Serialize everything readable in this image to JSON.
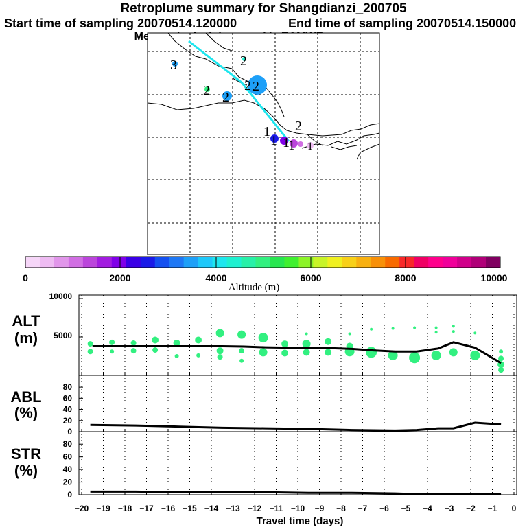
{
  "title": "Retroplume summary for Shangdianzi_200705",
  "start_label": "Start time of sampling 20070514.120000",
  "end_label": "End time of sampling 20070514.150000",
  "met_label": "Meteorological data used is ECMWF",
  "colorbar": {
    "label": "Altitude (m)",
    "ticks": [
      "0",
      "2000",
      "4000",
      "6000",
      "8000",
      "10000"
    ],
    "colors": [
      "#f6d6f8",
      "#eebbf2",
      "#e196ea",
      "#d16ee3",
      "#bb45db",
      "#a21ce0",
      "#8000e8",
      "#3a00e6",
      "#1a1ae8",
      "#1450f0",
      "#1e78f5",
      "#1ea0f8",
      "#1ec8fa",
      "#1ee6ee",
      "#1ef0d0",
      "#28f0a8",
      "#32f080",
      "#28e650",
      "#40f030",
      "#8cf428",
      "#c8f428",
      "#f0f020",
      "#f8d018",
      "#f8b010",
      "#f89008",
      "#f86a00",
      "#f82828",
      "#f00064",
      "#ff008c",
      "#f0009a",
      "#d0008a",
      "#b00078",
      "#800060"
    ]
  },
  "map": {
    "labels": [
      "3",
      "2",
      "2",
      "2",
      "2",
      "1",
      "1",
      "1",
      "2",
      "1",
      "1",
      "1"
    ]
  },
  "chart_data": [
    {
      "type": "line",
      "title": "",
      "ylabel": "ALT (m)",
      "ylabel_lines": [
        "ALT",
        "(m)"
      ],
      "ylim": [
        0,
        10000
      ],
      "yticks": [
        "10000",
        "5000"
      ],
      "x": [
        -19.5,
        -18.5,
        -17.5,
        -16.5,
        -15.5,
        -14.5,
        -13.5,
        -12.5,
        -11.5,
        -10.5,
        -9.5,
        -8.5,
        -7.5,
        -6.5,
        -5.5,
        -4.5,
        -3.5,
        -2.8,
        -1.8,
        -0.6
      ],
      "values": [
        3800,
        3800,
        3800,
        3800,
        3800,
        3800,
        3800,
        3750,
        3650,
        3600,
        3600,
        3550,
        3450,
        3250,
        3100,
        3100,
        3500,
        4300,
        3600,
        1600
      ],
      "scatter_color": "#32f080",
      "scatter": [
        {
          "x": -19.6,
          "y": 4100,
          "r": 4
        },
        {
          "x": -19.6,
          "y": 3100,
          "r": 4
        },
        {
          "x": -18.6,
          "y": 4300,
          "r": 4
        },
        {
          "x": -18.6,
          "y": 3100,
          "r": 3
        },
        {
          "x": -17.6,
          "y": 4200,
          "r": 4
        },
        {
          "x": -17.6,
          "y": 3200,
          "r": 4
        },
        {
          "x": -16.6,
          "y": 4600,
          "r": 5
        },
        {
          "x": -16.6,
          "y": 3300,
          "r": 4
        },
        {
          "x": -15.6,
          "y": 4200,
          "r": 5
        },
        {
          "x": -15.6,
          "y": 2500,
          "r": 3
        },
        {
          "x": -14.6,
          "y": 4600,
          "r": 5
        },
        {
          "x": -14.6,
          "y": 2600,
          "r": 3
        },
        {
          "x": -13.6,
          "y": 5500,
          "r": 6
        },
        {
          "x": -13.6,
          "y": 3200,
          "r": 5
        },
        {
          "x": -13.6,
          "y": 2400,
          "r": 4
        },
        {
          "x": -12.6,
          "y": 5300,
          "r": 6
        },
        {
          "x": -12.6,
          "y": 3200,
          "r": 4
        },
        {
          "x": -12.6,
          "y": 1900,
          "r": 3
        },
        {
          "x": -11.6,
          "y": 4900,
          "r": 7
        },
        {
          "x": -11.6,
          "y": 3000,
          "r": 6
        },
        {
          "x": -10.6,
          "y": 4100,
          "r": 5
        },
        {
          "x": -10.6,
          "y": 2900,
          "r": 5
        },
        {
          "x": -9.6,
          "y": 5400,
          "r": 2
        },
        {
          "x": -9.6,
          "y": 4100,
          "r": 6
        },
        {
          "x": -9.6,
          "y": 3000,
          "r": 5
        },
        {
          "x": -8.6,
          "y": 4400,
          "r": 5
        },
        {
          "x": -8.6,
          "y": 3000,
          "r": 5
        },
        {
          "x": -7.6,
          "y": 5400,
          "r": 2
        },
        {
          "x": -7.6,
          "y": 3800,
          "r": 5
        },
        {
          "x": -7.6,
          "y": 3100,
          "r": 7
        },
        {
          "x": -6.6,
          "y": 6000,
          "r": 2
        },
        {
          "x": -6.6,
          "y": 3000,
          "r": 8
        },
        {
          "x": -5.6,
          "y": 6100,
          "r": 2
        },
        {
          "x": -5.6,
          "y": 2600,
          "r": 7
        },
        {
          "x": -4.6,
          "y": 6200,
          "r": 2
        },
        {
          "x": -4.6,
          "y": 2300,
          "r": 8
        },
        {
          "x": -3.6,
          "y": 6200,
          "r": 2
        },
        {
          "x": -3.6,
          "y": 5600,
          "r": 2
        },
        {
          "x": -3.6,
          "y": 2600,
          "r": 7
        },
        {
          "x": -2.8,
          "y": 6400,
          "r": 2
        },
        {
          "x": -2.8,
          "y": 5700,
          "r": 2
        },
        {
          "x": -2.8,
          "y": 3000,
          "r": 6
        },
        {
          "x": -1.8,
          "y": 5500,
          "r": 2
        },
        {
          "x": -1.8,
          "y": 2600,
          "r": 7
        },
        {
          "x": -0.6,
          "y": 3100,
          "r": 3
        },
        {
          "x": -0.6,
          "y": 2200,
          "r": 4
        },
        {
          "x": -0.6,
          "y": 1400,
          "r": 5
        },
        {
          "x": -0.6,
          "y": 700,
          "r": 4
        }
      ]
    },
    {
      "type": "line",
      "title": "",
      "ylabel": "ABL (%)",
      "ylabel_lines": [
        "ABL",
        "(%)"
      ],
      "ylim": [
        0,
        90
      ],
      "yticks": [
        "80",
        "60",
        "40",
        "20",
        "0"
      ],
      "x": [
        -19.6,
        -17.5,
        -15.5,
        -13.5,
        -11.5,
        -9.5,
        -7.5,
        -5.5,
        -4.5,
        -3.5,
        -2.8,
        -1.8,
        -0.6
      ],
      "values": [
        12,
        11,
        9,
        7,
        6,
        5,
        3,
        2,
        3,
        6,
        6,
        16,
        13
      ]
    },
    {
      "type": "line",
      "title": "",
      "ylabel": "STR (%)",
      "ylabel_lines": [
        "STR",
        "(%)"
      ],
      "ylim": [
        0,
        90
      ],
      "yticks": [
        "80",
        "60",
        "40",
        "20",
        "0"
      ],
      "x": [
        -19.6,
        -17.5,
        -15.5,
        -13.5,
        -11.5,
        -9.5,
        -7.5,
        -5.5,
        -4.5,
        -0.6
      ],
      "values": [
        5,
        5,
        4,
        4,
        4,
        3,
        3,
        2,
        1,
        1
      ]
    }
  ],
  "xaxis": {
    "label": "Travel time (days)",
    "ticks": [
      "−20",
      "−19",
      "−18",
      "−17",
      "−16",
      "−15",
      "−14",
      "−13",
      "−12",
      "−11",
      "−10",
      "−9",
      "−8",
      "−7",
      "−6",
      "−5",
      "−4",
      "−3",
      "−2",
      "−1",
      "0"
    ]
  }
}
